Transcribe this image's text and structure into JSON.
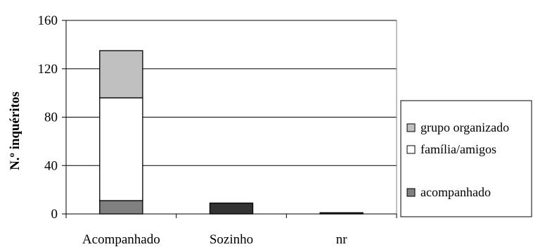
{
  "chart_data": {
    "type": "bar",
    "stacked": true,
    "categories": [
      "Acompanhado",
      "Sozinho",
      "nr"
    ],
    "series": [
      {
        "name": "acompanhado",
        "color": "#808080",
        "values": [
          11,
          0,
          0
        ]
      },
      {
        "name": "família/amigos",
        "color": "#ffffff",
        "values": [
          85,
          0,
          0
        ]
      },
      {
        "name": "grupo organizado",
        "color": "#c0c0c0",
        "values": [
          39,
          0,
          0
        ]
      },
      {
        "name": "",
        "color": "#333333",
        "values": [
          0,
          9,
          1
        ]
      }
    ],
    "ylabel": "N.º inquéritos",
    "xlabel": "",
    "ylim": [
      0,
      160
    ],
    "yticks": [
      "0",
      "40",
      "80",
      "120",
      "160"
    ],
    "grid": true,
    "legend": {
      "placement": "right",
      "entries": [
        "grupo organizado",
        "família/amigos",
        "acompanhado"
      ]
    }
  }
}
